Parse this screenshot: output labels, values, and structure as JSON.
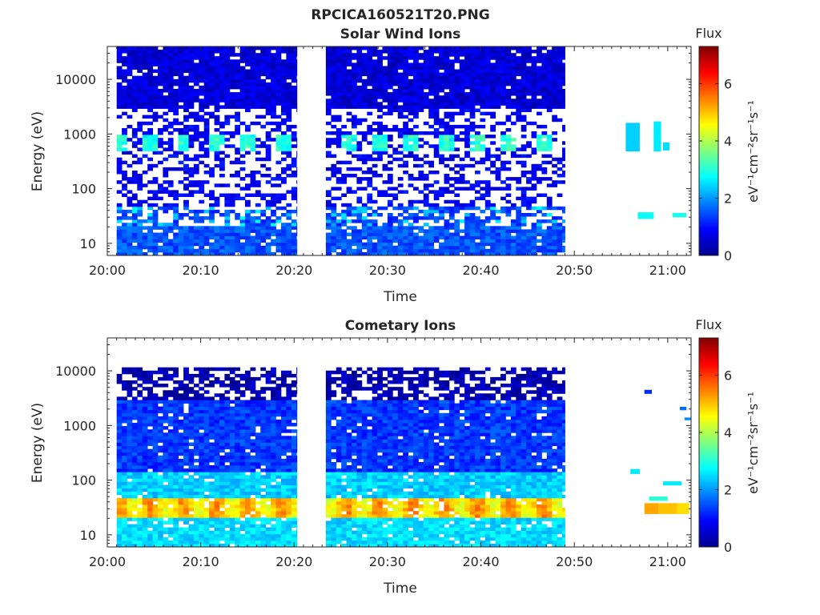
{
  "figure": {
    "title": "RPCICA160521T20.PNG"
  },
  "colorbar": {
    "label": "Flux",
    "unit_label": "eV⁻¹cm⁻²sr⁻¹s⁻¹",
    "range": [
      0,
      7.3
    ],
    "ticks": [
      0,
      2,
      4,
      6
    ],
    "colormap": "jet",
    "colors": [
      "#00008f",
      "#0000ff",
      "#00ffff",
      "#ffff00",
      "#ff0000",
      "#800000"
    ]
  },
  "chart_data": [
    {
      "type": "heatmap",
      "title": "Solar Wind Ions",
      "xlabel": "Time",
      "ylabel": "Energy (eV)",
      "x_tick_labels": [
        "20:00",
        "20:10",
        "20:20",
        "20:30",
        "20:40",
        "20:50",
        "21:00"
      ],
      "x_ticks_min": [
        0,
        10,
        20,
        30,
        40,
        50,
        60
      ],
      "xlim_min": [
        0,
        62.5
      ],
      "y_scale": "log",
      "ylim": [
        6,
        40000
      ],
      "y_tick_labels": [
        "10",
        "100",
        "1000",
        "10000"
      ],
      "y_ticks": [
        10,
        100,
        1000,
        10000
      ],
      "data_intervals_min": [
        [
          1,
          20.3
        ],
        [
          23.4,
          49
        ]
      ],
      "bands": [
        {
          "energy_range_eV": [
            6,
            22
          ],
          "flux": 1.5,
          "coverage": "dense"
        },
        {
          "energy_range_eV": [
            22,
            45
          ],
          "flux": 1.4,
          "coverage": "patchy, with spots near 2.4"
        },
        {
          "energy_range_eV": [
            45,
            480
          ],
          "flux": 0.8,
          "coverage": "sparse"
        },
        {
          "energy_range_eV": [
            480,
            950
          ],
          "flux": 2.7,
          "coverage": "periodic bursts every ~3.5 min"
        },
        {
          "energy_range_eV": [
            950,
            3000
          ],
          "flux": 0.8,
          "coverage": "sparse"
        },
        {
          "energy_range_eV": [
            3000,
            40000
          ],
          "flux": 0.6,
          "coverage": "dense"
        }
      ],
      "late_patches": [
        {
          "t_min": [
            55.5,
            57
          ],
          "energy_eV": [
            480,
            1600
          ],
          "flux": 2.4
        },
        {
          "t_min": [
            58.5,
            59.3
          ],
          "energy_eV": [
            480,
            1700
          ],
          "flux": 2.6
        },
        {
          "t_min": [
            59.5,
            60.2
          ],
          "energy_eV": [
            500,
            700
          ],
          "flux": 2.5
        },
        {
          "t_min": [
            56.8,
            58.5
          ],
          "energy_eV": [
            28,
            37
          ],
          "flux": 2.8
        },
        {
          "t_min": [
            60.5,
            62
          ],
          "energy_eV": [
            30,
            36
          ],
          "flux": 2.9
        }
      ]
    },
    {
      "type": "heatmap",
      "title": "Cometary Ions",
      "xlabel": "Time",
      "ylabel": "Energy (eV)",
      "x_tick_labels": [
        "20:00",
        "20:10",
        "20:20",
        "20:30",
        "20:40",
        "20:50",
        "21:00"
      ],
      "x_ticks_min": [
        0,
        10,
        20,
        30,
        40,
        50,
        60
      ],
      "xlim_min": [
        0,
        62.5
      ],
      "y_scale": "log",
      "ylim": [
        6,
        40000
      ],
      "y_tick_labels": [
        "10",
        "100",
        "1000",
        "10000"
      ],
      "y_ticks": [
        10,
        100,
        1000,
        10000
      ],
      "data_intervals_min": [
        [
          1,
          20.3
        ],
        [
          23.4,
          49
        ]
      ],
      "bands": [
        {
          "energy_range_eV": [
            6,
            22
          ],
          "flux": 2.5,
          "coverage": "dense"
        },
        {
          "energy_range_eV": [
            22,
            45
          ],
          "flux": 4.9,
          "coverage": "peak with ~3.5 min modulation"
        },
        {
          "energy_range_eV": [
            45,
            150
          ],
          "flux": 2.4,
          "coverage": "dense"
        },
        {
          "energy_range_eV": [
            150,
            3000
          ],
          "flux": 1.3,
          "coverage": "dense"
        },
        {
          "energy_range_eV": [
            3000,
            11000
          ],
          "flux": 0.3,
          "coverage": "patchy"
        }
      ],
      "late_patches": [
        {
          "t_min": [
            57.5,
            59
          ],
          "energy_eV": [
            24,
            38
          ],
          "flux": 5.2
        },
        {
          "t_min": [
            59,
            61
          ],
          "energy_eV": [
            24,
            38
          ],
          "flux": 5.0
        },
        {
          "t_min": [
            61,
            62.3
          ],
          "energy_eV": [
            24,
            38
          ],
          "flux": 4.8
        },
        {
          "t_min": [
            58,
            60
          ],
          "energy_eV": [
            42,
            50
          ],
          "flux": 3.0
        },
        {
          "t_min": [
            59.5,
            61.5
          ],
          "energy_eV": [
            80,
            95
          ],
          "flux": 2.6
        },
        {
          "t_min": [
            56,
            57
          ],
          "energy_eV": [
            130,
            160
          ],
          "flux": 2.6
        },
        {
          "t_min": [
            57.5,
            58.3
          ],
          "energy_eV": [
            3800,
            4500
          ],
          "flux": 1.2
        },
        {
          "t_min": [
            61.3,
            62
          ],
          "energy_eV": [
            1900,
            2200
          ],
          "flux": 1.7
        },
        {
          "t_min": [
            61.8,
            62.5
          ],
          "energy_eV": [
            1250,
            1400
          ],
          "flux": 1.9
        }
      ]
    }
  ]
}
